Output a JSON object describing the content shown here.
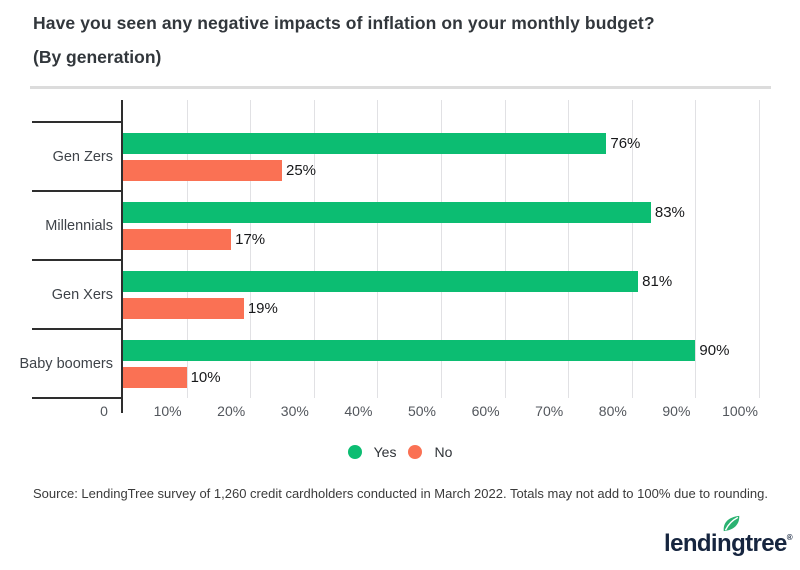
{
  "header": {
    "title": "Have you seen any negative impacts of inflation on your monthly budget?",
    "subtitle": "(By generation)"
  },
  "chart_data": {
    "type": "bar",
    "orientation": "horizontal",
    "title": "Have you seen any negative impacts of inflation on your monthly budget? (By generation)",
    "categories": [
      "Gen Zers",
      "Millennials",
      "Gen Xers",
      "Baby boomers"
    ],
    "series": [
      {
        "name": "Yes",
        "color": "#0cbd72",
        "values": [
          76,
          83,
          81,
          90
        ]
      },
      {
        "name": "No",
        "color": "#fa7154",
        "values": [
          25,
          17,
          19,
          10
        ]
      }
    ],
    "value_suffix": "%",
    "xlim": [
      0,
      100
    ],
    "x_ticks": [
      "0",
      "10%",
      "20%",
      "30%",
      "40%",
      "50%",
      "60%",
      "70%",
      "80%",
      "90%",
      "100%"
    ],
    "grid": "vertical",
    "legend_position": "bottom-center"
  },
  "source": {
    "text": "Source: LendingTree survey of 1,260 credit cardholders conducted in March 2022. Totals may not add to 100% due to rounding."
  },
  "logo": {
    "text": "lendingtree",
    "registered": "®",
    "navy": "#16253f",
    "leaf_green": "#2bb271"
  }
}
